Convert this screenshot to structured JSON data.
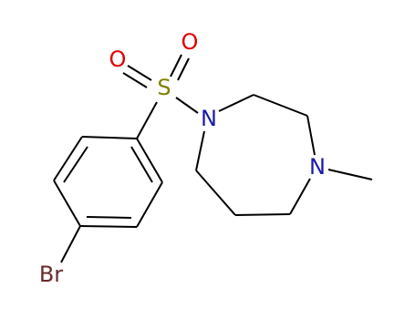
{
  "atoms": [
    {
      "label": "O"
    },
    {
      "label": "O"
    },
    {
      "label": "S"
    },
    {
      "label": "N"
    },
    {
      "label": "N"
    },
    {
      "label": "Br"
    }
  ]
}
